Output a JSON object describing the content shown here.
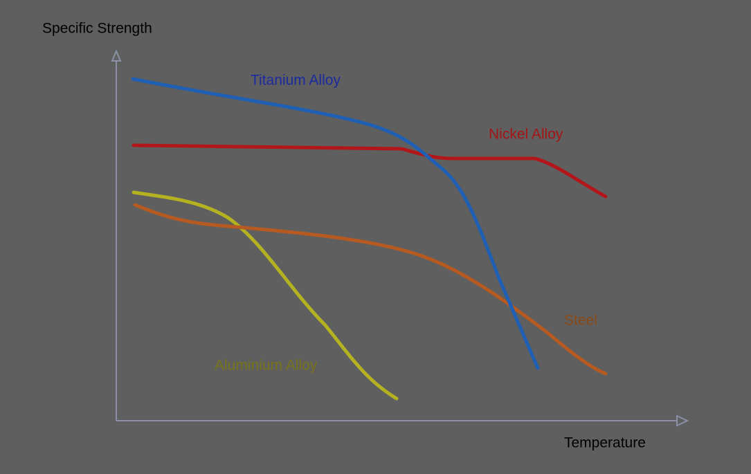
{
  "axes": {
    "y_label": "Specific Strength",
    "x_label": "Temperature"
  },
  "curves": [
    {
      "label": "Titanium Alloy",
      "color": "#1f5fb4",
      "label_color": "#1c2aa0"
    },
    {
      "label": "Nickel Alloy",
      "color": "#b2161a",
      "label_color": "#a41414"
    },
    {
      "label": "Aluminium Alloy",
      "color": "#b5b222",
      "label_color": "#76731a"
    },
    {
      "label": "Steel",
      "color": "#b65a22",
      "label_color": "#8a4a16"
    }
  ]
}
